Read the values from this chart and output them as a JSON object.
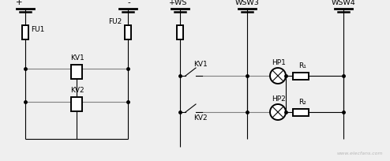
{
  "bg_color": "#efefef",
  "line_color": "#000000",
  "gray_line_color": "#808080",
  "line_width": 0.8,
  "lw_thick": 1.4,
  "dot_size": 2.5,
  "fig_width": 4.94,
  "fig_height": 2.05,
  "dpi": 100,
  "labels": {
    "plus": "+",
    "minus": "-",
    "FU1": "FU1",
    "FU2": "FU2",
    "KV1_left": "KV1",
    "KV2_left": "KV2",
    "WS_plus": "+WS",
    "WSW3": "WSW3",
    "WSW4": "WSW4",
    "KV1_right": "KV1",
    "KV2_right": "KV2",
    "HP1": "HP1",
    "HP2": "HP2",
    "R1": "R₁",
    "R2": "R₂"
  },
  "watermark": "www.elecfans.com"
}
